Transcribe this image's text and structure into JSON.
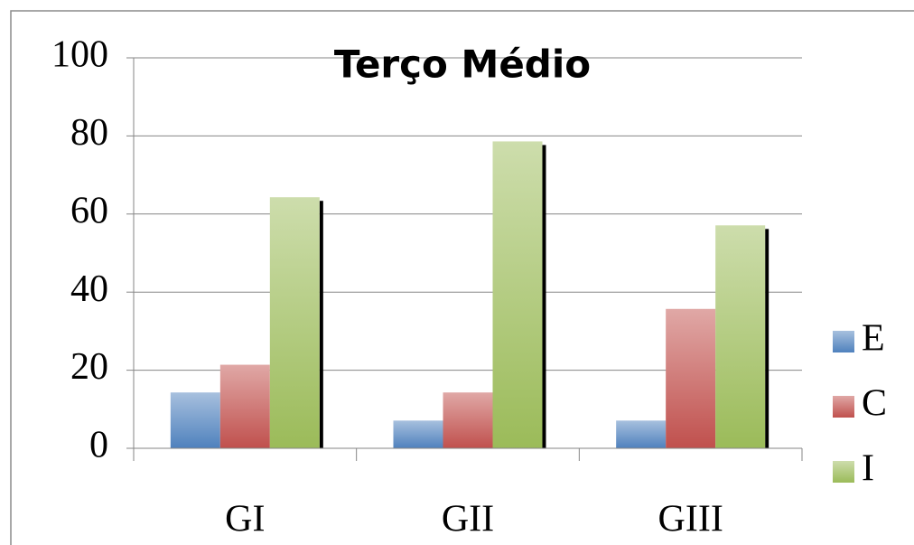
{
  "chart_data": {
    "type": "bar",
    "title": "Terço Médio",
    "categories": [
      "GI",
      "GII",
      "GIII"
    ],
    "series": [
      {
        "name": "E",
        "color": "#4f81bd",
        "values": [
          14.3,
          7.1,
          7.1
        ]
      },
      {
        "name": "C",
        "color": "#c0504d",
        "values": [
          21.4,
          14.3,
          35.7
        ]
      },
      {
        "name": "I",
        "color": "#9bbb59",
        "values": [
          64.3,
          78.6,
          57.1
        ]
      }
    ],
    "ylim": [
      0,
      100
    ],
    "yticks": [
      0,
      20,
      40,
      60,
      80,
      100
    ],
    "grid": true,
    "legend": "right"
  }
}
